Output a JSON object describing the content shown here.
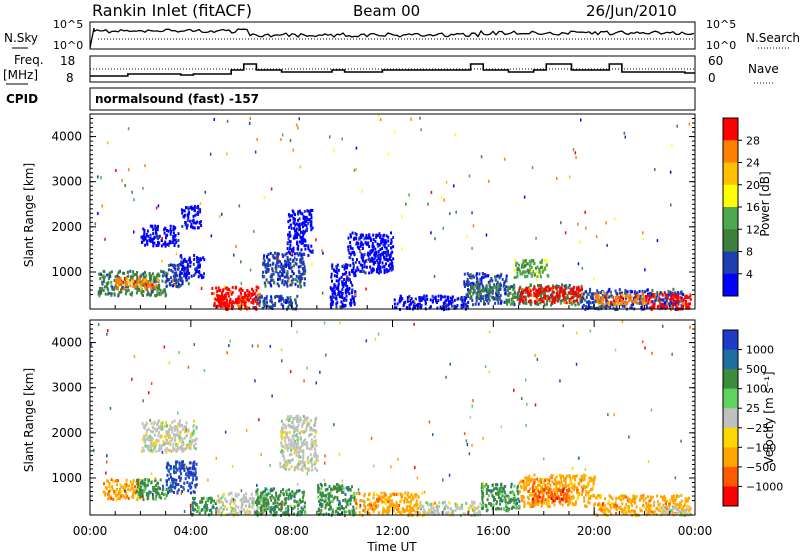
{
  "header": {
    "site": "Rankin Inlet (fitACF)",
    "beam": "Beam 00",
    "date": "26/Jun/2010"
  },
  "top_panels": {
    "nsky_label": "N.Sky",
    "nsearch_label": "N.Search",
    "noise_ticks_left": [
      "10^5",
      "10^0"
    ],
    "noise_ticks_right": [
      "10^5",
      "10^0"
    ],
    "freq_label": "Freq.",
    "freq_unit": "[MHz]",
    "freq_ticks": [
      "18",
      "8"
    ],
    "nave_label": "Nave",
    "nave_ticks": [
      "60",
      "0"
    ],
    "cpid_label": "CPID",
    "cpid_text": "normalsound (fast) -157"
  },
  "colors": {
    "power": [
      "#0000ff",
      "#1f3fb0",
      "#3f7f3f",
      "#4fa84f",
      "#ffff00",
      "#ffc000",
      "#ff7f00",
      "#ff0000"
    ],
    "velocity": [
      "#ff0000",
      "#ff5a00",
      "#ffa500",
      "#ffd700",
      "#c0c0c0",
      "#5fd35f",
      "#3c8c3c",
      "#1e6ea0",
      "#1e3cc8"
    ]
  },
  "chart_data": [
    {
      "type": "heatmap",
      "title": "",
      "xlabel": "",
      "ylabel": "Slant Range [km]",
      "colorbar_label": "Power [dB]",
      "colorbar_ticks": [
        "28",
        "24",
        "20",
        "16",
        "12",
        "8",
        "4"
      ],
      "ylim": [
        180,
        4500
      ],
      "y_ticks": [
        "4000",
        "3000",
        "2000",
        "1000"
      ],
      "x_ticks": [
        "00:00",
        "04:00",
        "08:00",
        "12:00",
        "16:00",
        "20:00",
        "00:00"
      ],
      "regions": [
        {
          "t": [
            0.3,
            3.0
          ],
          "r": [
            500,
            1050
          ],
          "c": 2
        },
        {
          "t": [
            1.0,
            2.7
          ],
          "r": [
            650,
            900
          ],
          "c": 6
        },
        {
          "t": [
            3.0,
            3.9
          ],
          "r": [
            700,
            1200
          ],
          "c": 1
        },
        {
          "t": [
            3.5,
            4.5
          ],
          "r": [
            900,
            1400
          ],
          "c": 0
        },
        {
          "t": [
            2.0,
            3.5
          ],
          "r": [
            1600,
            2050
          ],
          "c": 0
        },
        {
          "t": [
            3.6,
            4.4
          ],
          "r": [
            2000,
            2500
          ],
          "c": 0
        },
        {
          "t": [
            4.8,
            6.7
          ],
          "r": [
            200,
            700
          ],
          "c": 7
        },
        {
          "t": [
            5.0,
            6.2
          ],
          "r": [
            250,
            500
          ],
          "c": 7
        },
        {
          "t": [
            6.5,
            8.2
          ],
          "r": [
            200,
            500
          ],
          "c": 1
        },
        {
          "t": [
            6.8,
            8.5
          ],
          "r": [
            700,
            1450
          ],
          "c": 1
        },
        {
          "t": [
            7.8,
            8.8
          ],
          "r": [
            1400,
            2400
          ],
          "c": 0
        },
        {
          "t": [
            9.5,
            10.5
          ],
          "r": [
            250,
            1200
          ],
          "c": 0
        },
        {
          "t": [
            10.2,
            12.0
          ],
          "r": [
            1000,
            1900
          ],
          "c": 0
        },
        {
          "t": [
            12.0,
            15.0
          ],
          "r": [
            200,
            500
          ],
          "c": 0
        },
        {
          "t": [
            14.8,
            16.5
          ],
          "r": [
            300,
            1000
          ],
          "c": 1
        },
        {
          "t": [
            15.0,
            16.2
          ],
          "r": [
            450,
            750
          ],
          "c": 2
        },
        {
          "t": [
            16.5,
            19.5
          ],
          "r": [
            300,
            750
          ],
          "c": 2
        },
        {
          "t": [
            17.0,
            19.5
          ],
          "r": [
            350,
            700
          ],
          "c": 7
        },
        {
          "t": [
            16.8,
            18.2
          ],
          "r": [
            900,
            1300
          ],
          "c": 3
        },
        {
          "t": [
            19.5,
            23.5
          ],
          "r": [
            200,
            650
          ],
          "c": 1
        },
        {
          "t": [
            20.0,
            22.0
          ],
          "r": [
            300,
            550
          ],
          "c": 6
        },
        {
          "t": [
            22.0,
            23.8
          ],
          "r": [
            200,
            550
          ],
          "c": 7
        }
      ]
    },
    {
      "type": "heatmap",
      "title": "",
      "xlabel": "Time UT",
      "ylabel": "Slant Range [km]",
      "colorbar_label": "Velocity [m s⁻¹]",
      "colorbar_ticks": [
        "1000",
        "500",
        "100",
        "25",
        "−25",
        "−100",
        "−500",
        "−1000"
      ],
      "ylim": [
        180,
        4500
      ],
      "y_ticks": [
        "4000",
        "3000",
        "2000",
        "1000"
      ],
      "x_ticks": [
        "00:00",
        "04:00",
        "08:00",
        "12:00",
        "16:00",
        "20:00",
        "00:00"
      ],
      "regions": [
        {
          "t": [
            0.5,
            2.0
          ],
          "r": [
            550,
            1000
          ],
          "c": 2
        },
        {
          "t": [
            1.8,
            3.2
          ],
          "r": [
            550,
            1000
          ],
          "c": 6
        },
        {
          "t": [
            3.0,
            4.2
          ],
          "r": [
            700,
            1400
          ],
          "c": 8
        },
        {
          "t": [
            2.0,
            4.2
          ],
          "r": [
            1600,
            2300
          ],
          "c": 4
        },
        {
          "t": [
            4.0,
            5.0
          ],
          "r": [
            200,
            600
          ],
          "c": 6
        },
        {
          "t": [
            5.0,
            7.0
          ],
          "r": [
            200,
            700
          ],
          "c": 4
        },
        {
          "t": [
            6.5,
            8.5
          ],
          "r": [
            200,
            800
          ],
          "c": 6
        },
        {
          "t": [
            7.5,
            9.0
          ],
          "r": [
            1200,
            2400
          ],
          "c": 4
        },
        {
          "t": [
            9.0,
            10.5
          ],
          "r": [
            200,
            900
          ],
          "c": 6
        },
        {
          "t": [
            10.5,
            13.0
          ],
          "r": [
            200,
            700
          ],
          "c": 2
        },
        {
          "t": [
            13.0,
            15.5
          ],
          "r": [
            200,
            500
          ],
          "c": 4
        },
        {
          "t": [
            15.5,
            17.0
          ],
          "r": [
            300,
            900
          ],
          "c": 6
        },
        {
          "t": [
            17.0,
            20.0
          ],
          "r": [
            400,
            1100
          ],
          "c": 2
        },
        {
          "t": [
            17.5,
            19.0
          ],
          "r": [
            500,
            800
          ],
          "c": 1
        },
        {
          "t": [
            20.0,
            23.8
          ],
          "r": [
            200,
            650
          ],
          "c": 2
        },
        {
          "t": [
            22.5,
            23.8
          ],
          "r": [
            200,
            400
          ],
          "c": 4
        }
      ]
    }
  ]
}
